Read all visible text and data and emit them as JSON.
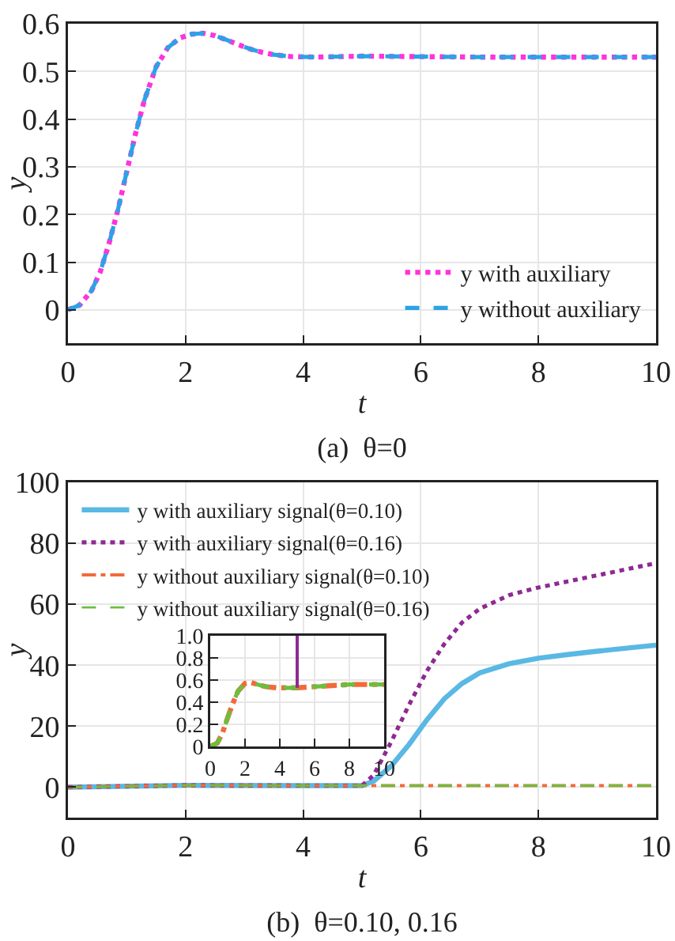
{
  "chart_data": [
    {
      "type": "line",
      "title": "(a)  θ=0",
      "xlabel": "t",
      "ylabel": "y",
      "xlim": [
        0,
        10
      ],
      "xticks": [
        0,
        2,
        4,
        6,
        8,
        10
      ],
      "ylim": [
        -0.07,
        0.6
      ],
      "yticks": [
        0,
        0.1,
        0.2,
        0.3,
        0.4,
        0.5,
        0.6
      ],
      "grid": true,
      "legend": "bottom right",
      "x": [
        0,
        0.2,
        0.4,
        0.55,
        0.7,
        0.85,
        1,
        1.15,
        1.3,
        1.5,
        1.7,
        1.9,
        2.1,
        2.3,
        2.5,
        2.7,
        2.9,
        3.1,
        3.3,
        3.5,
        3.8,
        4.2,
        5,
        6,
        7,
        8,
        9,
        10
      ],
      "series": [
        {
          "name": "y with auxiliary",
          "color": "#ff33dd",
          "line_style": "dotted",
          "values": [
            0,
            0.01,
            0.04,
            0.08,
            0.14,
            0.21,
            0.29,
            0.37,
            0.44,
            0.51,
            0.55,
            0.57,
            0.578,
            0.58,
            0.575,
            0.566,
            0.556,
            0.547,
            0.54,
            0.535,
            0.531,
            0.53,
            0.532,
            0.531,
            0.53,
            0.53,
            0.53,
            0.53
          ]
        },
        {
          "name": "y without auxiliary",
          "color": "#2aa3e6",
          "line_style": "dashed",
          "values": [
            0,
            0.01,
            0.04,
            0.08,
            0.14,
            0.21,
            0.29,
            0.37,
            0.44,
            0.51,
            0.55,
            0.57,
            0.578,
            0.58,
            0.575,
            0.566,
            0.556,
            0.547,
            0.54,
            0.535,
            0.531,
            0.53,
            0.532,
            0.531,
            0.53,
            0.53,
            0.53,
            0.53
          ]
        }
      ]
    },
    {
      "type": "line",
      "title": "(b)  θ=0.10, 0.16",
      "xlabel": "t",
      "ylabel": "y",
      "xlim": [
        0,
        10
      ],
      "xticks": [
        0,
        2,
        4,
        6,
        8,
        10
      ],
      "ylim": [
        -10,
        100
      ],
      "yticks": [
        0,
        20,
        40,
        60,
        80,
        100
      ],
      "grid": true,
      "legend": "top left",
      "series": [
        {
          "name": "y with auxiliary signal(θ=0.10)",
          "color": "#5ab8e4",
          "line_style": "solid",
          "x": [
            0,
            2,
            4,
            5,
            5.2,
            5.5,
            5.8,
            6.1,
            6.4,
            6.7,
            7,
            7.5,
            8,
            8.5,
            9,
            9.5,
            10
          ],
          "values": [
            0,
            0.6,
            0.5,
            0.5,
            2,
            7,
            14,
            22,
            29,
            34,
            37.5,
            40.5,
            42.3,
            43.5,
            44.6,
            45.6,
            46.6
          ]
        },
        {
          "name": "y with auxiliary signal(θ=0.16)",
          "color": "#8e2a92",
          "line_style": "dotted",
          "x": [
            0,
            2,
            4,
            5,
            5.2,
            5.5,
            5.8,
            6.1,
            6.4,
            6.7,
            7,
            7.5,
            8,
            8.5,
            9,
            9.5,
            10
          ],
          "values": [
            0,
            0.6,
            0.5,
            0.5,
            4,
            15,
            27,
            38,
            47,
            54,
            58.5,
            63,
            65.5,
            67.5,
            69.5,
            71.5,
            73.5
          ]
        },
        {
          "name": "y without auxiliary signal(θ=0.10)",
          "color": "#f26a3a",
          "line_style": "dashdot",
          "x": [
            0,
            2,
            4,
            6,
            8,
            10
          ],
          "values": [
            0,
            0.6,
            0.5,
            0.5,
            0.5,
            0.5
          ]
        },
        {
          "name": "y without auxiliary signal(θ=0.16)",
          "color": "#6abf3f",
          "line_style": "dashed",
          "x": [
            0,
            2,
            4,
            6,
            8,
            10
          ],
          "values": [
            0,
            0.6,
            0.5,
            0.5,
            0.5,
            0.5
          ]
        }
      ]
    },
    {
      "type": "line",
      "xlim": [
        0,
        10
      ],
      "xticks": [
        0,
        2,
        4,
        6,
        8,
        10
      ],
      "ylim": [
        0,
        1
      ],
      "yticks": [
        0,
        0.2,
        0.4,
        0.6,
        0.8,
        {
          "value": 1,
          "label": "1.0"
        }
      ],
      "grid": true,
      "series": [
        {
          "color": "#f26a3a",
          "line_style": "dashdot",
          "x": [
            0,
            0.4,
            0.7,
            1,
            1.3,
            1.6,
            2,
            2.3,
            2.7,
            3.2,
            3.8,
            4.5,
            5,
            6,
            7,
            8,
            9,
            10
          ],
          "values": [
            0,
            0.03,
            0.12,
            0.26,
            0.39,
            0.5,
            0.57,
            0.58,
            0.56,
            0.54,
            0.53,
            0.53,
            0.53,
            0.54,
            0.55,
            0.56,
            0.56,
            0.56
          ]
        },
        {
          "color": "#6abf3f",
          "line_style": "dashed",
          "x": [
            0,
            0.4,
            0.7,
            1,
            1.3,
            1.6,
            2,
            2.3,
            2.7,
            3.2,
            3.8,
            4.5,
            5,
            6,
            7,
            8,
            9,
            10
          ],
          "values": [
            0,
            0.03,
            0.12,
            0.26,
            0.39,
            0.5,
            0.57,
            0.58,
            0.56,
            0.54,
            0.53,
            0.53,
            0.53,
            0.54,
            0.55,
            0.56,
            0.56,
            0.56
          ]
        },
        {
          "color": "#8e2a92",
          "line_style": "solid",
          "x": [
            5,
            5
          ],
          "values": [
            0.53,
            1
          ]
        }
      ]
    }
  ]
}
